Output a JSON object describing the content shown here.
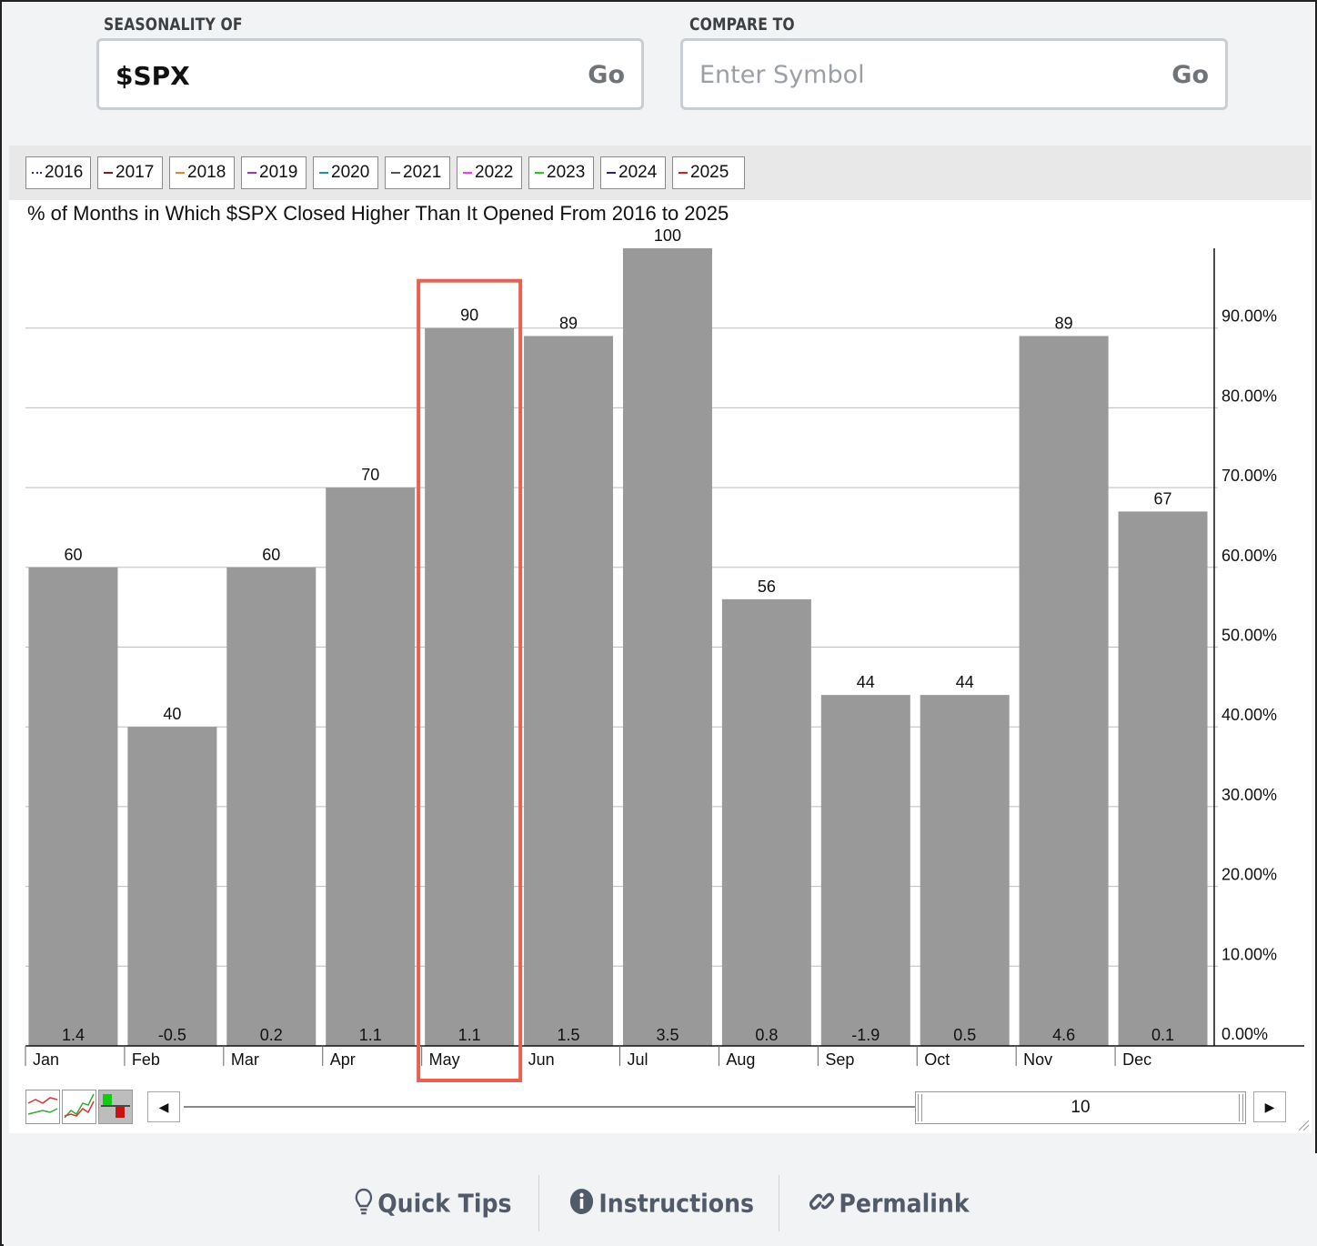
{
  "search": {
    "seasonality_label": "SEASONALITY OF",
    "seasonality_value": "$SPX",
    "compare_label": "COMPARE TO",
    "compare_placeholder": "Enter Symbol",
    "go_label": "Go"
  },
  "legend": [
    {
      "label": "2016",
      "color": "#2a2a90",
      "style": "dotted"
    },
    {
      "label": "2017",
      "color": "#8b1a1a",
      "style": "solid"
    },
    {
      "label": "2018",
      "color": "#f07d28",
      "style": "solid"
    },
    {
      "label": "2019",
      "color": "#9b30d9",
      "style": "solid"
    },
    {
      "label": "2020",
      "color": "#1a9a9a",
      "style": "solid"
    },
    {
      "label": "2021",
      "color": "#555555",
      "style": "solid"
    },
    {
      "label": "2022",
      "color": "#ff30ff",
      "style": "solid"
    },
    {
      "label": "2023",
      "color": "#22cc22",
      "style": "solid"
    },
    {
      "label": "2024",
      "color": "#2a1aa0",
      "style": "solid"
    },
    {
      "label": "2025",
      "color": "#e81818",
      "style": "solid"
    }
  ],
  "chart_data": {
    "type": "bar",
    "title": "% of Months in Which $SPX Closed Higher Than It Opened From 2016 to 2025",
    "categories": [
      "Jan",
      "Feb",
      "Mar",
      "Apr",
      "May",
      "Jun",
      "Jul",
      "Aug",
      "Sep",
      "Oct",
      "Nov",
      "Dec"
    ],
    "values": [
      60,
      40,
      60,
      70,
      90,
      89,
      100,
      56,
      44,
      44,
      89,
      67
    ],
    "bottom_labels": [
      "1.4",
      "-0.5",
      "0.2",
      "1.1",
      "1.1",
      "1.5",
      "3.5",
      "0.8",
      "-1.9",
      "0.5",
      "4.6",
      "0.1"
    ],
    "ylim": [
      0,
      100
    ],
    "yticks": [
      0,
      10,
      20,
      30,
      40,
      50,
      60,
      70,
      80,
      90
    ],
    "ytick_labels": [
      "0.00%",
      "10.00%",
      "20.00%",
      "30.00%",
      "40.00%",
      "50.00%",
      "60.00%",
      "70.00%",
      "80.00%",
      "90.00%"
    ],
    "y_axis_side": "right",
    "grid": true,
    "bar_color": "#999999",
    "highlight": {
      "category": "May",
      "color": "#e8604f"
    }
  },
  "controls": {
    "period_value": "10",
    "left_arrow": "◀",
    "right_arrow": "▶"
  },
  "footer": {
    "quick_tips": "Quick Tips",
    "instructions": "Instructions",
    "permalink": "Permalink"
  }
}
